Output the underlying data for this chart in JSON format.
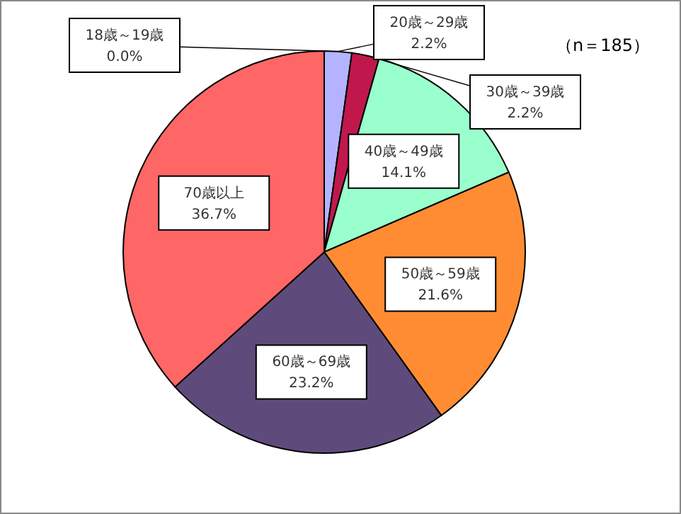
{
  "chart_data": {
    "type": "pie",
    "categories": [
      "18歳～19歳",
      "20歳～29歳",
      "30歳～39歳",
      "40歳～49歳",
      "50歳～59歳",
      "60歳～69歳",
      "70歳以上"
    ],
    "values": [
      0.0,
      2.2,
      2.2,
      14.1,
      21.6,
      23.2,
      36.7
    ],
    "value_labels": [
      "0.0%",
      "2.2%",
      "2.2%",
      "14.1%",
      "21.6%",
      "23.2%",
      "36.7%"
    ],
    "colors": [
      "#9999ff",
      "#b3b3ff",
      "#c0184c",
      "#99ffcc",
      "#ff8c33",
      "#5f4b7b",
      "#ff6666"
    ],
    "annotations": [
      "（n＝185）"
    ]
  }
}
